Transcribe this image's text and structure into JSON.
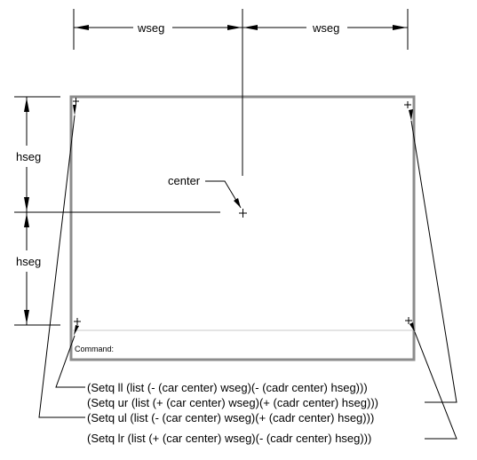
{
  "labels": {
    "wseg_left": "wseg",
    "wseg_right": "wseg",
    "hseg_top": "hseg",
    "hseg_bottom": "hseg",
    "center": "center",
    "command": "Command:"
  },
  "code_lines": [
    "(Setq ll (list (- (car center) wseg)(- (cadr center) hseg)))",
    "(Setq ur (list (+ (car center) wseg)(+ (cadr center) hseg)))",
    "(Setq ul (list (- (car center) wseg)(+ (cadr center) hseg)))",
    "(Setq lr (list (+ (car center) wseg)(- (cadr center) hseg)))"
  ],
  "colors": {
    "frame": "#8c8c8c",
    "lines": "#000000"
  }
}
